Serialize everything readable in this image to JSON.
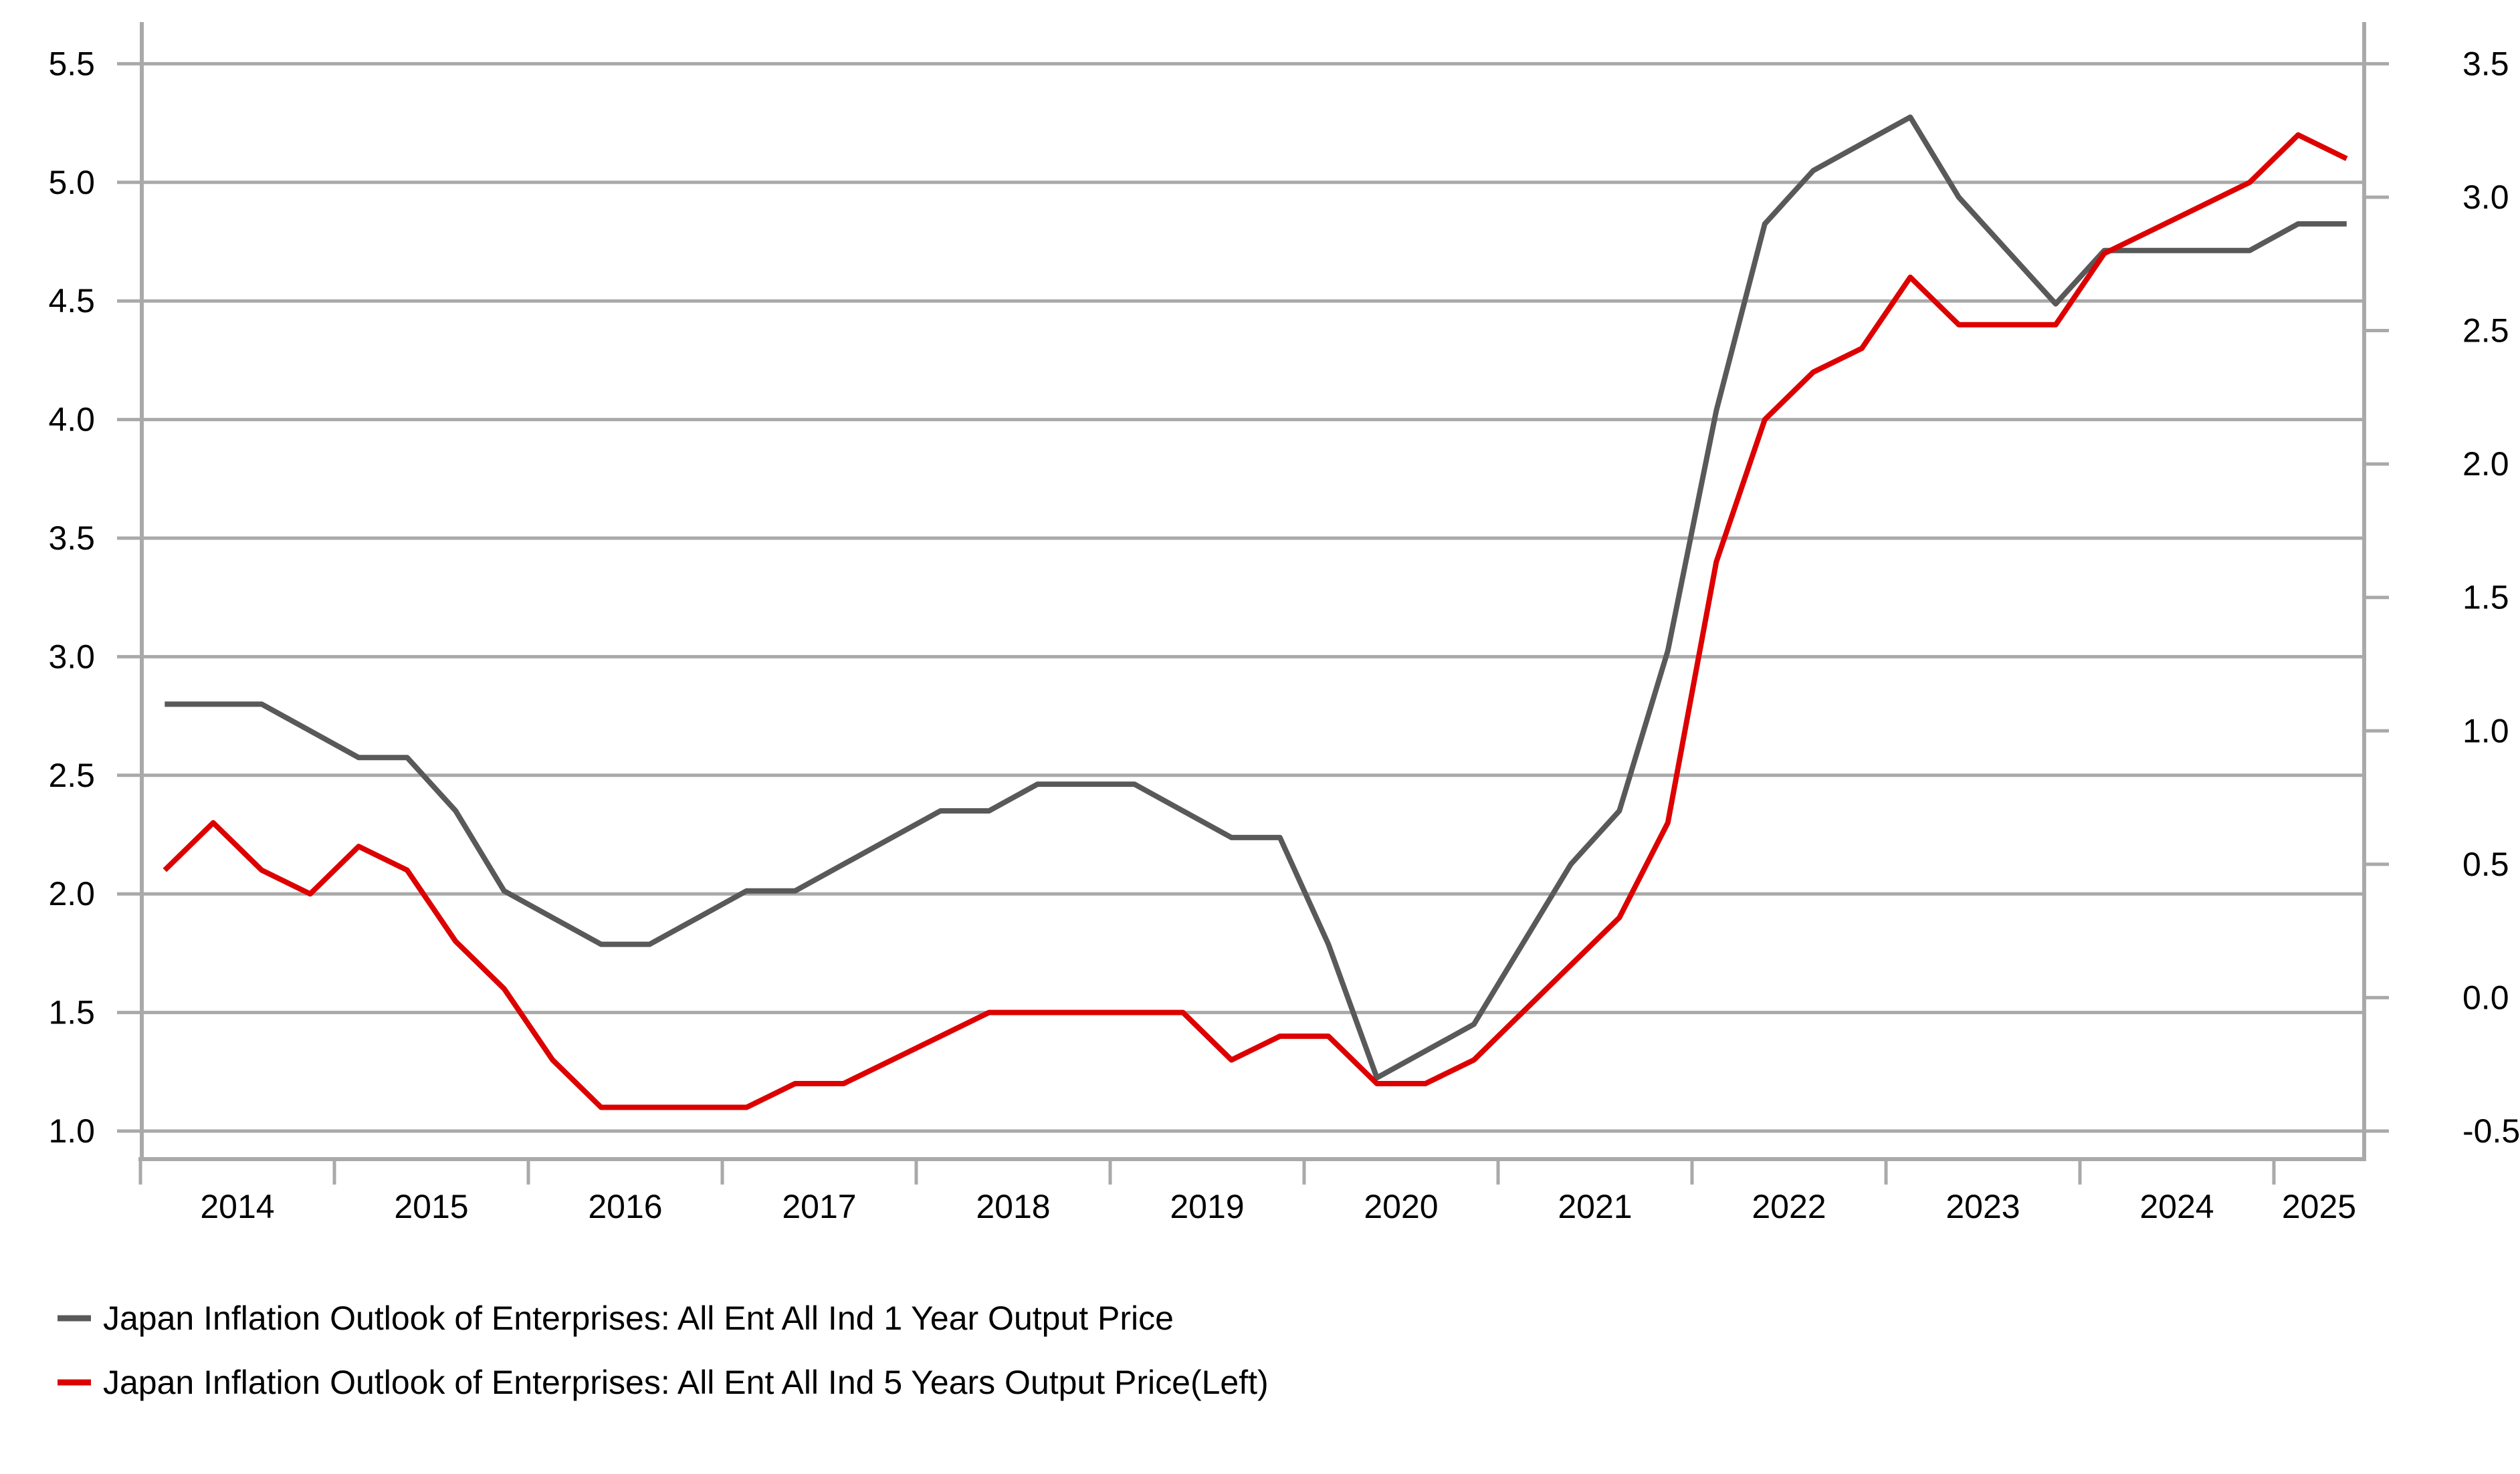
{
  "chart_data": {
    "type": "line",
    "title": "",
    "x_unit": "quarterly",
    "quarters": [
      "2014Q1",
      "2014Q2",
      "2014Q3",
      "2014Q4",
      "2015Q1",
      "2015Q2",
      "2015Q3",
      "2015Q4",
      "2016Q1",
      "2016Q2",
      "2016Q3",
      "2016Q4",
      "2017Q1",
      "2017Q2",
      "2017Q3",
      "2017Q4",
      "2018Q1",
      "2018Q2",
      "2018Q3",
      "2018Q4",
      "2019Q1",
      "2019Q2",
      "2019Q3",
      "2019Q4",
      "2020Q1",
      "2020Q2",
      "2020Q3",
      "2020Q4",
      "2021Q1",
      "2021Q2",
      "2021Q3",
      "2021Q4",
      "2022Q1",
      "2022Q2",
      "2022Q3",
      "2022Q4",
      "2023Q1",
      "2023Q2",
      "2023Q3",
      "2023Q4",
      "2024Q1",
      "2024Q2",
      "2024Q3",
      "2024Q4",
      "2025Q1",
      "2025Q2"
    ],
    "x_year_labels": [
      "2014",
      "2015",
      "2016",
      "2017",
      "2018",
      "2019",
      "2020",
      "2021",
      "2022",
      "2023",
      "2024",
      "2025"
    ],
    "series": [
      {
        "name": "Japan Inflation Outlook of Enterprises: All Ent All Ind 1 Year Output Price",
        "axis": "right",
        "color": "#595959",
        "values": [
          1.1,
          1.1,
          1.1,
          1.0,
          0.9,
          0.9,
          0.7,
          0.4,
          0.3,
          0.2,
          0.2,
          0.3,
          0.4,
          0.4,
          0.5,
          0.6,
          0.7,
          0.7,
          0.8,
          0.8,
          0.8,
          0.7,
          0.6,
          0.6,
          0.2,
          -0.3,
          -0.2,
          -0.1,
          0.2,
          0.5,
          0.7,
          1.3,
          2.2,
          2.9,
          3.1,
          3.2,
          3.3,
          3.0,
          2.8,
          2.6,
          2.8,
          2.8,
          2.8,
          2.8,
          2.9,
          2.9
        ]
      },
      {
        "name": "Japan Inflation Outlook of Enterprises: All Ent All Ind 5 Years Output Price(Left)",
        "axis": "left",
        "color": "#dd0000",
        "values": [
          2.1,
          2.3,
          2.1,
          2.0,
          2.2,
          2.1,
          1.8,
          1.6,
          1.3,
          1.1,
          1.1,
          1.1,
          1.1,
          1.2,
          1.2,
          1.3,
          1.4,
          1.5,
          1.5,
          1.5,
          1.5,
          1.5,
          1.3,
          1.4,
          1.4,
          1.2,
          1.2,
          1.3,
          1.5,
          1.7,
          1.9,
          2.3,
          3.4,
          4.0,
          4.2,
          4.3,
          4.6,
          4.4,
          4.4,
          4.4,
          4.7,
          4.8,
          4.9,
          5.0,
          5.2,
          5.1
        ]
      }
    ],
    "left_axis": {
      "min": 1.0,
      "max": 5.5,
      "tick_labels": [
        "5.5",
        "5.0",
        "4.5",
        "4.0",
        "3.5",
        "3.0",
        "2.5",
        "2.0",
        "1.5",
        "1.0"
      ]
    },
    "right_axis": {
      "min": -0.5,
      "max": 3.5,
      "tick_labels": [
        "3.5",
        "3.0",
        "2.5",
        "2.0",
        "1.5",
        "1.0",
        "0.5",
        "0.0",
        "-0.5"
      ]
    },
    "grid": "horizontal",
    "legend_position": "bottom-left"
  },
  "legend": {
    "items": [
      {
        "label": "Japan Inflation Outlook of Enterprises: All Ent All Ind 1 Year Output Price",
        "color": "#595959"
      },
      {
        "label": "Japan Inflation Outlook of Enterprises: All Ent All Ind 5 Years Output Price(Left)",
        "color": "#dd0000"
      }
    ]
  },
  "colors": {
    "series_1yr": "#595959",
    "series_5yr": "#dd0000",
    "gridline": "#a9a9a9",
    "axis": "#a9a9a9",
    "text": "#000000",
    "background": "#ffffff"
  }
}
